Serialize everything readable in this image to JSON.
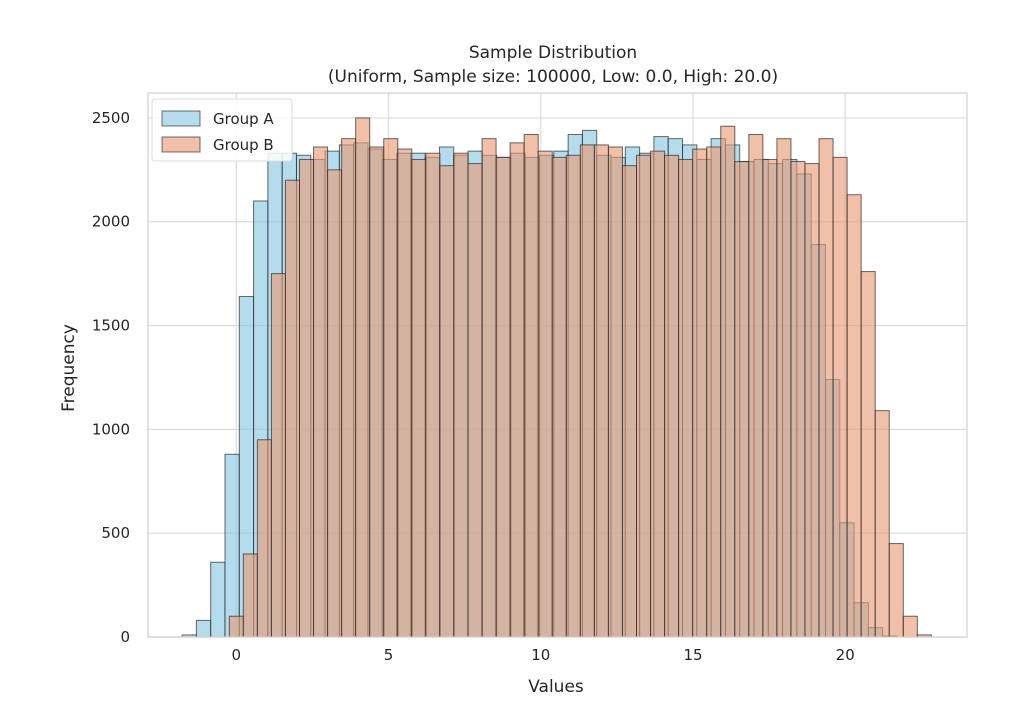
{
  "chart_data": {
    "type": "histogram",
    "title": "Sample Distribution",
    "subtitle": "(Uniform, Sample size: 100000, Low: 0.0, High: 20.0)",
    "xlabel": "Values",
    "ylabel": "Frequency",
    "xlim": [
      -2.9,
      24.0
    ],
    "ylim": [
      0,
      2620
    ],
    "xticks": [
      0,
      5,
      10,
      15,
      20
    ],
    "xtick_labels": [
      "0",
      "5",
      "10",
      "15",
      "20"
    ],
    "yticks": [
      0,
      500,
      1000,
      1500,
      2000,
      2500
    ],
    "ytick_labels": [
      "0",
      "500",
      "1000",
      "1500",
      "2000",
      "2500"
    ],
    "grid": true,
    "legend_position": "top-left",
    "series": [
      {
        "name": "Group A",
        "color": "#87c6e0",
        "bin_start": -1.78,
        "bin_end": 21.7,
        "counts": [
          10,
          80,
          360,
          880,
          1640,
          2100,
          2330,
          2330,
          2320,
          2300,
          2340,
          2370,
          2380,
          2350,
          2300,
          2330,
          2330,
          2310,
          2360,
          2320,
          2340,
          2320,
          2310,
          2330,
          2310,
          2320,
          2340,
          2420,
          2440,
          2320,
          2310,
          2360,
          2330,
          2410,
          2400,
          2370,
          2300,
          2400,
          2370,
          2290,
          2300,
          2280,
          2300,
          2230,
          1890,
          1240,
          550,
          165,
          45,
          5
        ]
      },
      {
        "name": "Group B",
        "color": "#e99a75",
        "bin_start": -0.23,
        "bin_end": 22.83,
        "counts": [
          100,
          400,
          950,
          1750,
          2200,
          2300,
          2360,
          2250,
          2400,
          2500,
          2360,
          2400,
          2350,
          2300,
          2330,
          2270,
          2330,
          2280,
          2400,
          2310,
          2380,
          2420,
          2340,
          2310,
          2320,
          2370,
          2370,
          2360,
          2270,
          2320,
          2340,
          2320,
          2300,
          2350,
          2360,
          2460,
          2290,
          2420,
          2300,
          2400,
          2290,
          2280,
          2400,
          2310,
          2130,
          1760,
          1090,
          450,
          100,
          10
        ]
      }
    ]
  }
}
